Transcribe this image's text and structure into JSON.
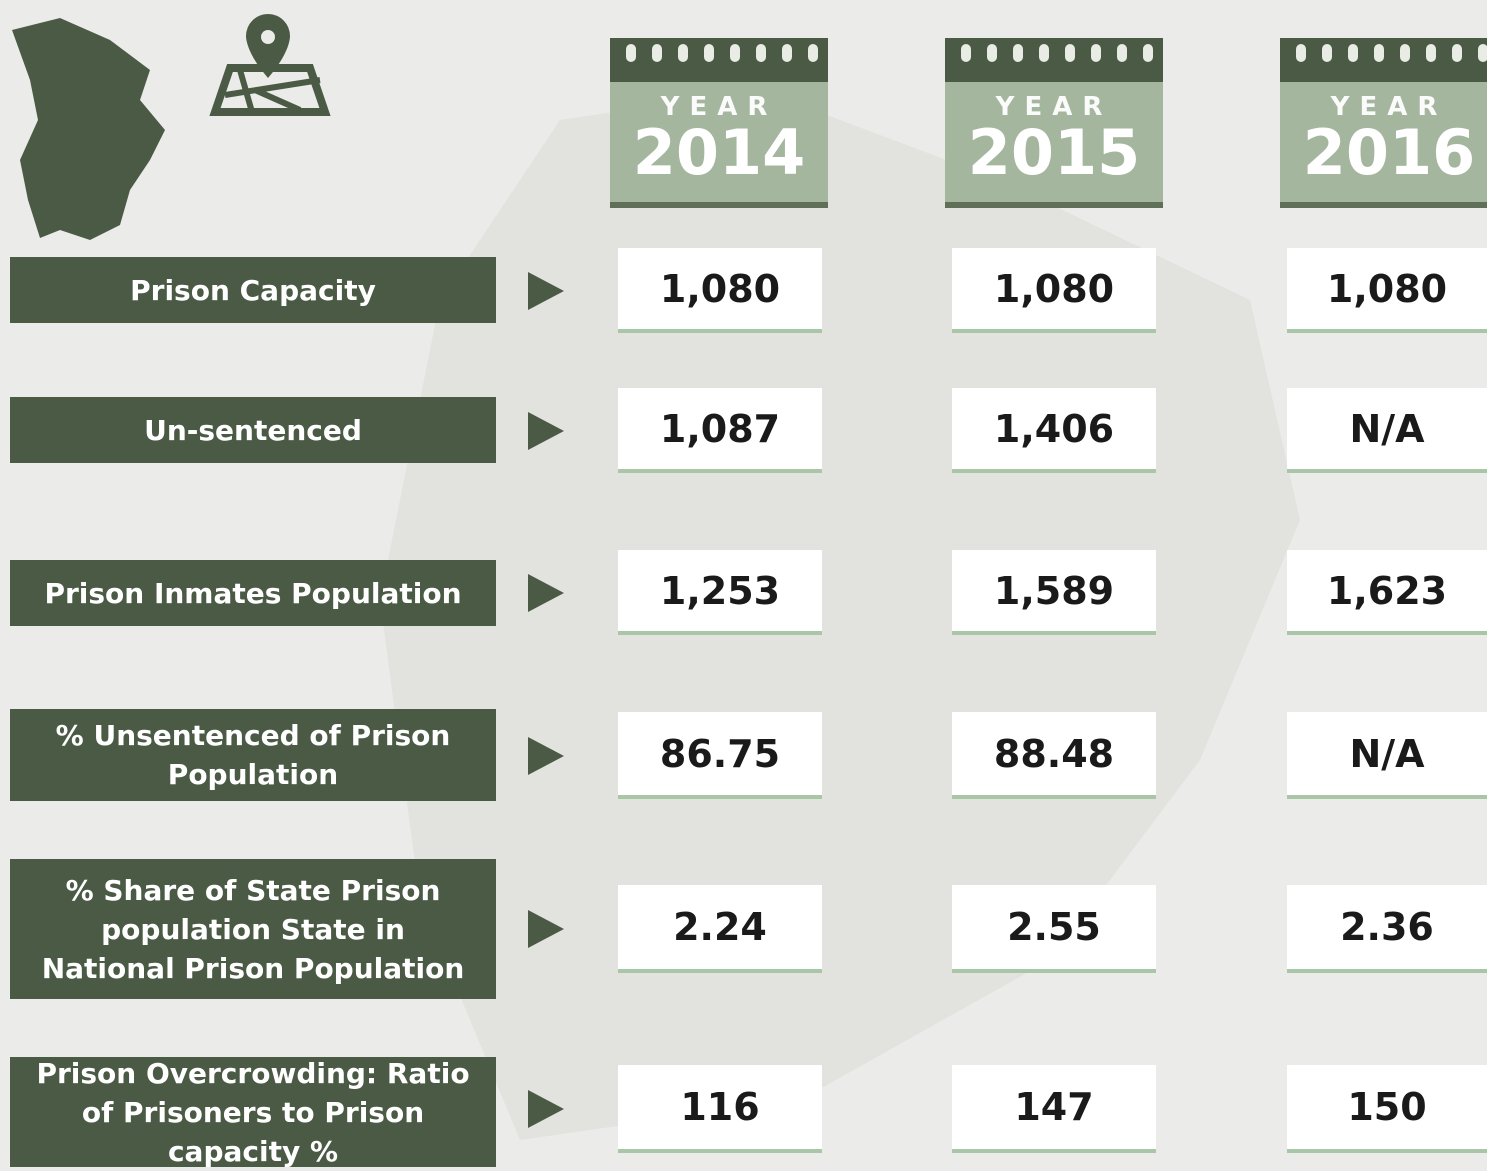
{
  "columns": [
    {
      "label": "YEAR",
      "year": "2014"
    },
    {
      "label": "YEAR",
      "year": "2015"
    },
    {
      "label": "YEAR",
      "year": "2016"
    }
  ],
  "rows": [
    {
      "label": "Prison Capacity",
      "values": [
        "1,080",
        "1,080",
        "1,080"
      ]
    },
    {
      "label": "Un-sentenced",
      "values": [
        "1,087",
        "1,406",
        "N/A"
      ]
    },
    {
      "label": "Prison Inmates Population",
      "values": [
        "1,253",
        "1,589",
        "1,623"
      ]
    },
    {
      "label": "% Unsentenced of Prison Population",
      "values": [
        "86.75",
        "88.48",
        "N/A"
      ]
    },
    {
      "label": "% Share of State Prison population State in National Prison Population",
      "values": [
        "2.24",
        "2.55",
        "2.36"
      ]
    },
    {
      "label": "Prison Overcrowding: Ratio of Prisoners to Prison capacity %",
      "values": [
        "116",
        "147",
        "150"
      ]
    }
  ]
}
